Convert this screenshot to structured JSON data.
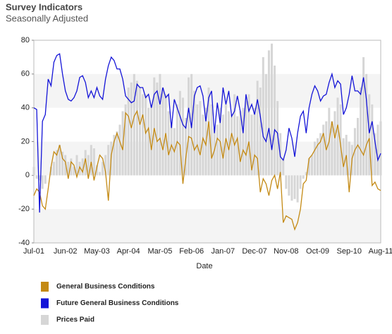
{
  "chart_data": {
    "type": "line",
    "title": "Survey Indicators",
    "subtitle": "Seasonally Adjusted",
    "x_label": "Date",
    "categories": [
      "Jul-01",
      null,
      null,
      null,
      null,
      null,
      null,
      null,
      null,
      null,
      null,
      "Jun-02",
      null,
      null,
      null,
      null,
      null,
      null,
      null,
      null,
      null,
      null,
      "May-03",
      null,
      null,
      null,
      null,
      null,
      null,
      null,
      null,
      null,
      null,
      "Apr-04",
      null,
      null,
      null,
      null,
      null,
      null,
      null,
      null,
      null,
      null,
      "Mar-05",
      null,
      null,
      null,
      null,
      null,
      null,
      null,
      null,
      null,
      null,
      "Feb-06",
      null,
      null,
      null,
      null,
      null,
      null,
      null,
      null,
      null,
      null,
      "Jan-07",
      null,
      null,
      null,
      null,
      null,
      null,
      null,
      null,
      null,
      null,
      "Dec-07",
      null,
      null,
      null,
      null,
      null,
      null,
      null,
      null,
      null,
      null,
      "Nov-08",
      null,
      null,
      null,
      null,
      null,
      null,
      null,
      null,
      null,
      null,
      "Oct-09",
      null,
      null,
      null,
      null,
      null,
      null,
      null,
      null,
      null,
      null,
      "Sep-10",
      null,
      null,
      null,
      null,
      null,
      null,
      null,
      null,
      null,
      null,
      "Aug-11"
    ],
    "ylim": [
      -40,
      80
    ],
    "yticks": [
      -40,
      -20,
      0,
      20,
      40,
      60,
      80
    ],
    "bands": true,
    "series": [
      {
        "name": "General Business Conditions",
        "color": "#c48a14",
        "kind": "line",
        "values": [
          -12,
          -8,
          -10,
          -18,
          -20,
          -8,
          5,
          14,
          12,
          18,
          10,
          8,
          -2,
          8,
          6,
          -1,
          5,
          2,
          10,
          -2,
          8,
          -3,
          5,
          12,
          10,
          2,
          -15,
          12,
          20,
          25,
          20,
          15,
          37,
          35,
          28,
          35,
          38,
          30,
          36,
          25,
          28,
          15,
          28,
          20,
          22,
          15,
          25,
          12,
          18,
          14,
          20,
          18,
          -5,
          10,
          23,
          22,
          15,
          18,
          12,
          22,
          18,
          32,
          10,
          15,
          22,
          20,
          10,
          22,
          15,
          25,
          18,
          22,
          8,
          15,
          12,
          20,
          3,
          12,
          10,
          -10,
          -2,
          -5,
          -12,
          -3,
          0,
          -8,
          2,
          -28,
          -24,
          -25,
          -26,
          -32,
          -28,
          -20,
          -5,
          -3,
          10,
          12,
          15,
          18,
          20,
          25,
          15,
          20,
          32,
          22,
          30,
          18,
          5,
          12,
          -10,
          10,
          15,
          18,
          15,
          12,
          18,
          22,
          -6,
          -4,
          -8,
          -9
        ]
      },
      {
        "name": "Future General Business Conditions",
        "color": "#1414d8",
        "kind": "line",
        "values": [
          40,
          39,
          -22,
          32,
          36,
          57,
          53,
          67,
          71,
          72,
          60,
          50,
          45,
          44,
          46,
          50,
          58,
          59,
          55,
          46,
          50,
          46,
          52,
          47,
          45,
          57,
          65,
          70,
          68,
          63,
          63,
          57,
          47,
          45,
          43,
          44,
          54,
          52,
          52,
          46,
          48,
          40,
          48,
          50,
          42,
          52,
          46,
          48,
          28,
          45,
          40,
          35,
          30,
          28,
          40,
          28,
          47,
          52,
          53,
          47,
          32,
          46,
          50,
          25,
          43,
          31,
          52,
          42,
          50,
          35,
          38,
          47,
          38,
          25,
          48,
          38,
          42,
          36,
          45,
          35,
          23,
          20,
          28,
          15,
          27,
          25,
          11,
          9,
          15,
          28,
          22,
          11,
          25,
          35,
          38,
          25,
          40,
          48,
          53,
          50,
          44,
          47,
          48,
          55,
          60,
          52,
          56,
          54,
          36,
          40,
          48,
          59,
          50,
          50,
          48,
          58,
          45,
          25,
          32,
          20,
          9,
          13
        ]
      },
      {
        "name": "Prices Paid",
        "color": "#d6d6d6",
        "kind": "bar",
        "values": [
          5,
          -2,
          -3,
          -8,
          -5,
          0,
          5,
          8,
          15,
          18,
          14,
          12,
          8,
          10,
          5,
          12,
          8,
          10,
          15,
          12,
          18,
          16,
          6,
          2,
          8,
          12,
          18,
          20,
          24,
          26,
          30,
          38,
          42,
          52,
          55,
          60,
          56,
          52,
          48,
          48,
          40,
          42,
          58,
          55,
          60,
          52,
          48,
          38,
          30,
          28,
          42,
          50,
          46,
          34,
          58,
          60,
          50,
          42,
          44,
          36,
          40,
          52,
          42,
          28,
          30,
          40,
          36,
          42,
          38,
          36,
          48,
          35,
          38,
          40,
          44,
          48,
          36,
          40,
          56,
          52,
          70,
          60,
          74,
          78,
          65,
          44,
          25,
          10,
          -8,
          -12,
          -15,
          -14,
          -16,
          -8,
          -2,
          2,
          10,
          12,
          20,
          22,
          25,
          30,
          32,
          40,
          32,
          38,
          46,
          42,
          22,
          24,
          20,
          18,
          28,
          34,
          52,
          70,
          60,
          48,
          42,
          25,
          30,
          32
        ]
      }
    ]
  }
}
